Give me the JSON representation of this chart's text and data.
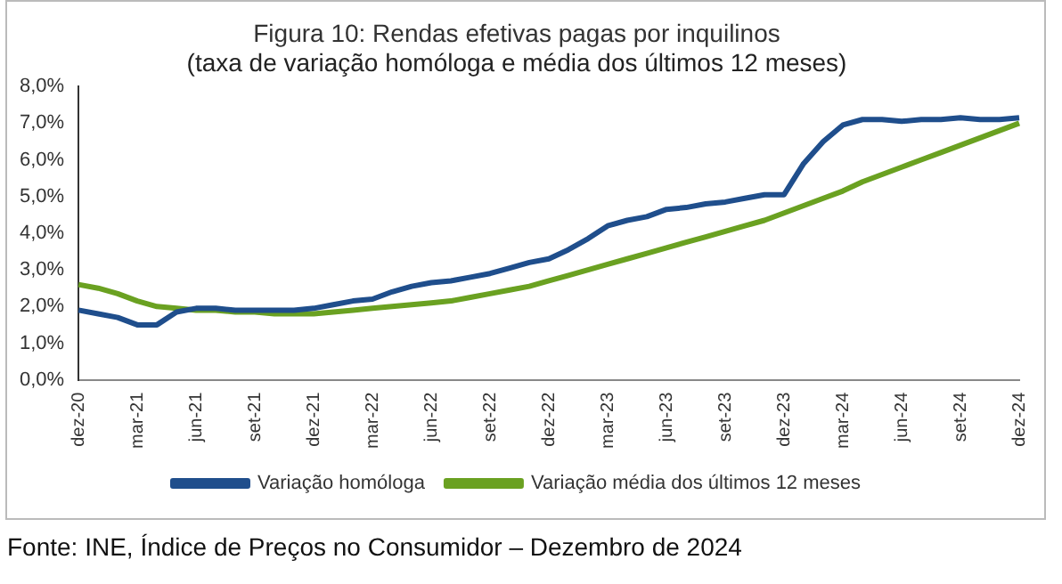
{
  "chart_data": {
    "type": "line",
    "title": "Figura 10: Rendas efetivas pagas por inquilinos",
    "subtitle": "(taxa de variação homóloga e média dos últimos 12 meses)",
    "categories": [
      "dez-20",
      null,
      null,
      "mar-21",
      null,
      null,
      "jun-21",
      null,
      null,
      "set-21",
      null,
      null,
      "dez-21",
      null,
      null,
      "mar-22",
      null,
      null,
      "jun-22",
      null,
      null,
      "set-22",
      null,
      null,
      "dez-22",
      null,
      null,
      "mar-23",
      null,
      null,
      "jun-23",
      null,
      null,
      "set-23",
      null,
      null,
      "dez-23",
      null,
      null,
      "mar-24",
      null,
      null,
      "jun-24",
      null,
      null,
      "set-24",
      null,
      null,
      "dez-24"
    ],
    "series": [
      {
        "name": "Variação homóloga",
        "color": "#1f4e8c",
        "values": [
          1.9,
          1.8,
          1.7,
          1.5,
          1.5,
          1.85,
          1.95,
          1.95,
          1.9,
          1.9,
          1.9,
          1.9,
          1.95,
          2.05,
          2.15,
          2.2,
          2.4,
          2.55,
          2.65,
          2.7,
          2.8,
          2.9,
          3.05,
          3.2,
          3.3,
          3.55,
          3.85,
          4.2,
          4.35,
          4.45,
          4.65,
          4.7,
          4.8,
          4.85,
          4.95,
          5.05,
          5.05,
          5.9,
          6.5,
          6.95,
          7.1,
          7.1,
          7.05,
          7.1,
          7.1,
          7.15,
          7.1,
          7.1,
          7.15
        ]
      },
      {
        "name": "Variação média dos últimos 12 meses",
        "color": "#6aa121",
        "values": [
          2.6,
          2.5,
          2.35,
          2.15,
          2.0,
          1.95,
          1.9,
          1.9,
          1.85,
          1.85,
          1.8,
          1.8,
          1.8,
          1.85,
          1.9,
          1.95,
          2.0,
          2.05,
          2.1,
          2.15,
          2.25,
          2.35,
          2.45,
          2.55,
          2.7,
          2.85,
          3.0,
          3.15,
          3.3,
          3.45,
          3.6,
          3.75,
          3.9,
          4.05,
          4.2,
          4.35,
          4.55,
          4.75,
          4.95,
          5.15,
          5.4,
          5.6,
          5.8,
          6.0,
          6.2,
          6.4,
          6.6,
          6.8,
          7.0
        ]
      }
    ],
    "ylim": [
      0,
      8
    ],
    "yticks": [
      {
        "value": 0,
        "label": "0,0%"
      },
      {
        "value": 1,
        "label": "1,0%"
      },
      {
        "value": 2,
        "label": "2,0%"
      },
      {
        "value": 3,
        "label": "3,0%"
      },
      {
        "value": 4,
        "label": "4,0%"
      },
      {
        "value": 5,
        "label": "5,0%"
      },
      {
        "value": 6,
        "label": "6,0%"
      },
      {
        "value": 7,
        "label": "7,0%"
      },
      {
        "value": 8,
        "label": "8,0%"
      }
    ],
    "grid": false,
    "legend": "bottom",
    "marker": "none",
    "line_style": "solid",
    "annotations": [
      "Fonte: INE, Índice de Preços no Consumidor – Dezembro de 2024"
    ]
  }
}
